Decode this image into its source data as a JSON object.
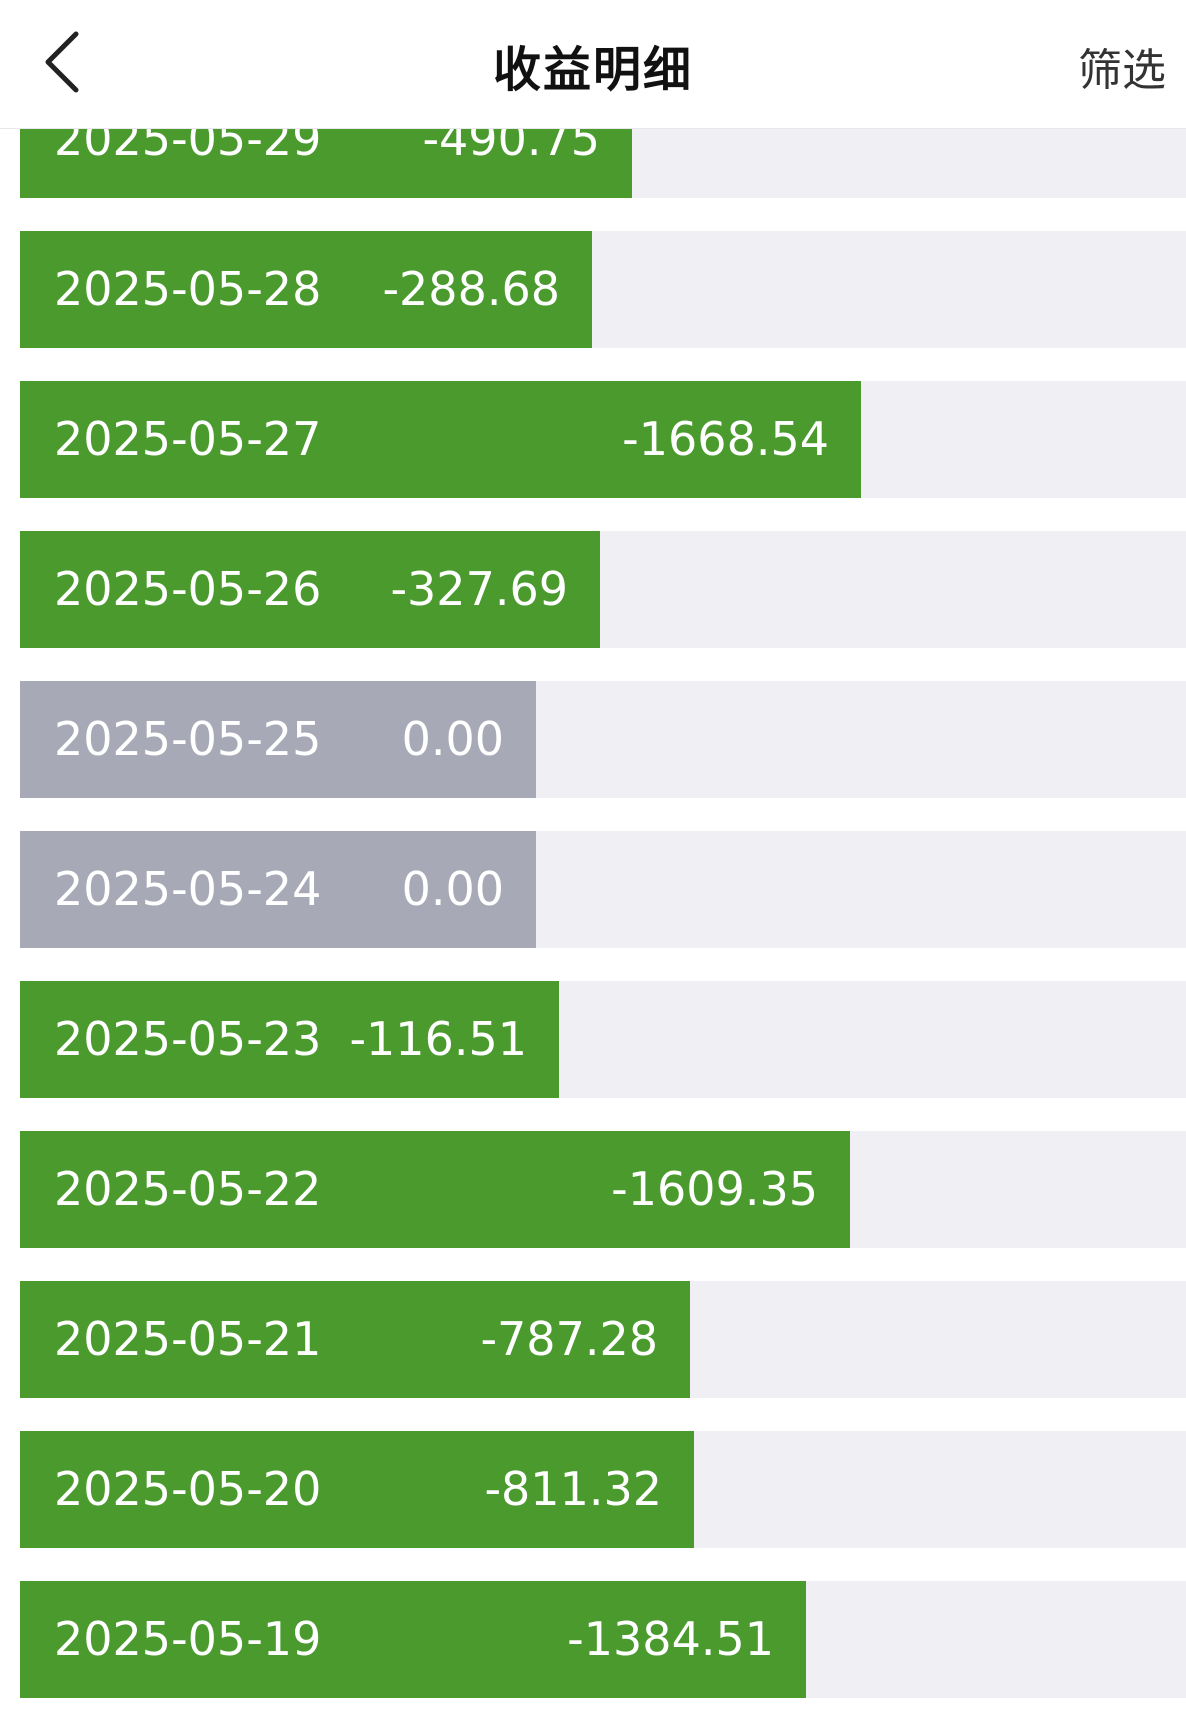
{
  "header": {
    "title": "收益明细",
    "filter_label": "筛选",
    "back_icon": "chevron-left-icon"
  },
  "colors": {
    "negative_bar": "#4a9a2e",
    "zero_bar": "#a7a9b6",
    "row_track": "#f0f0f4",
    "row_text": "#ffffff"
  },
  "rows": [
    {
      "date": "2025-05-29",
      "value": "-490.75",
      "amount": -490.75
    },
    {
      "date": "2025-05-28",
      "value": "-288.68",
      "amount": -288.68
    },
    {
      "date": "2025-05-27",
      "value": "-1668.54",
      "amount": -1668.54
    },
    {
      "date": "2025-05-26",
      "value": "-327.69",
      "amount": -327.69
    },
    {
      "date": "2025-05-25",
      "value": "0.00",
      "amount": 0
    },
    {
      "date": "2025-05-24",
      "value": "0.00",
      "amount": 0
    },
    {
      "date": "2025-05-23",
      "value": "-116.51",
      "amount": -116.51
    },
    {
      "date": "2025-05-22",
      "value": "-1609.35",
      "amount": -1609.35
    },
    {
      "date": "2025-05-21",
      "value": "-787.28",
      "amount": -787.28
    },
    {
      "date": "2025-05-20",
      "value": "-811.32",
      "amount": -811.32
    },
    {
      "date": "2025-05-19",
      "value": "-1384.51",
      "amount": -1384.51
    }
  ]
}
